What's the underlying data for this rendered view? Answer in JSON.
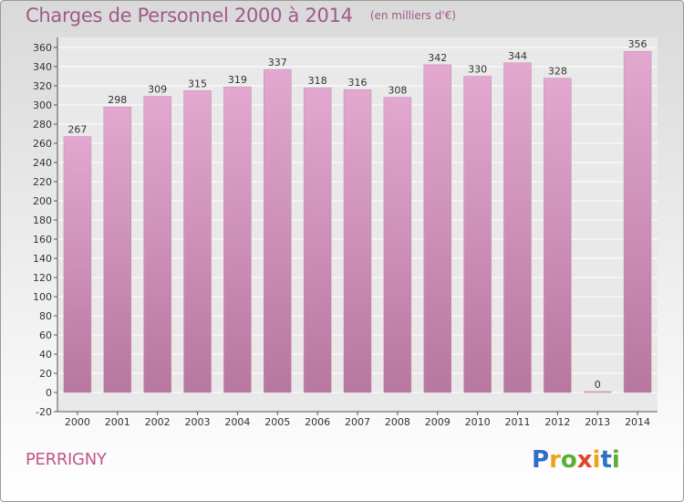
{
  "title": "Charges de Personnel 2000 à 2014",
  "subtitle": "(en milliers d'€)",
  "place": "PERRIGNY",
  "logo": {
    "text": "Proxiti",
    "letters": [
      "P",
      "r",
      "o",
      "x",
      "i",
      "t",
      "i"
    ],
    "colors": [
      "#2f6fc6",
      "#f0a21a",
      "#5ab030",
      "#e0452a",
      "#f0a21a",
      "#2f6fc6",
      "#5ab030"
    ]
  },
  "colors": {
    "bar_top": "#e3a8d0",
    "bar_bottom": "#b7779f",
    "plot_bg": "#e9e9e9",
    "grid": "#ffffff",
    "axis_text": "#333333",
    "title": "#a05a8a"
  },
  "chart_data": {
    "type": "bar",
    "categories": [
      "2000",
      "2001",
      "2002",
      "2003",
      "2004",
      "2005",
      "2006",
      "2007",
      "2008",
      "2009",
      "2010",
      "2011",
      "2012",
      "2013",
      "2014"
    ],
    "values": [
      267,
      298,
      309,
      315,
      319,
      337,
      318,
      316,
      308,
      342,
      330,
      344,
      328,
      0,
      356
    ],
    "title": "Charges de Personnel 2000 à 2014",
    "subtitle": "(en milliers d'€)",
    "xlabel": "",
    "ylabel": "",
    "ylim": [
      -20,
      360
    ],
    "yticks": [
      -20,
      0,
      20,
      40,
      60,
      80,
      100,
      120,
      140,
      160,
      180,
      200,
      220,
      240,
      260,
      280,
      300,
      320,
      340,
      360
    ],
    "grid": true,
    "legend": "none"
  }
}
